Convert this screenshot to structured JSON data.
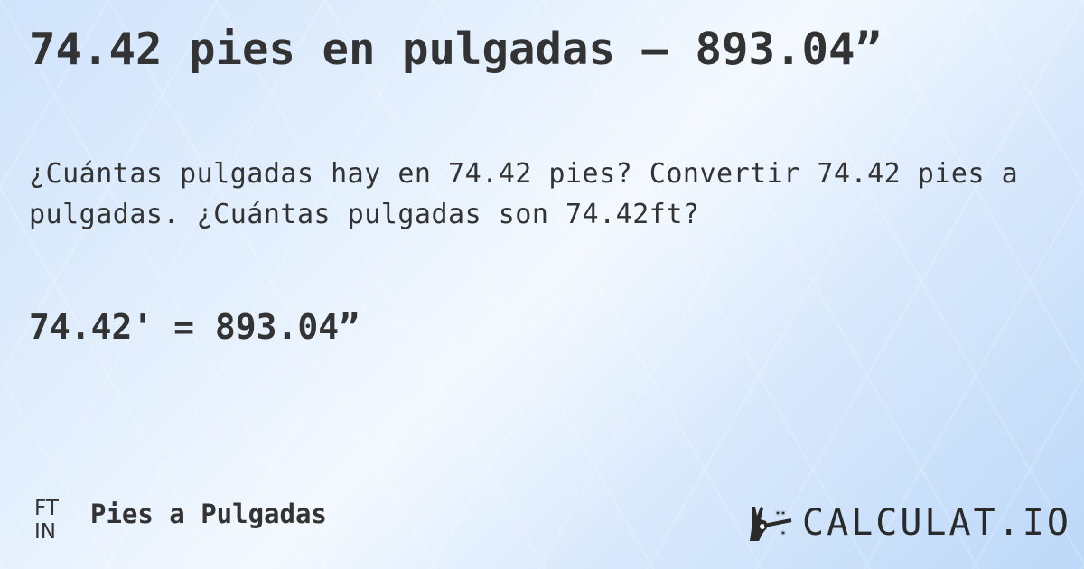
{
  "title": "74.42 pies en pulgadas — 893.04”",
  "description": "¿Cuántas pulgadas hay en 74.42 pies? Convertir 74.42 pies a pulgadas. ¿Cuántas pulgadas son 74.42ft?",
  "result": "74.42' = 893.04”",
  "footer": {
    "unit_icon_top": "FT",
    "unit_icon_bottom": "IN",
    "category": "Pies a Pulgadas",
    "logo_text": "CALCULAT.IO",
    "logo_icon": "magic-hand-wand-icon"
  }
}
